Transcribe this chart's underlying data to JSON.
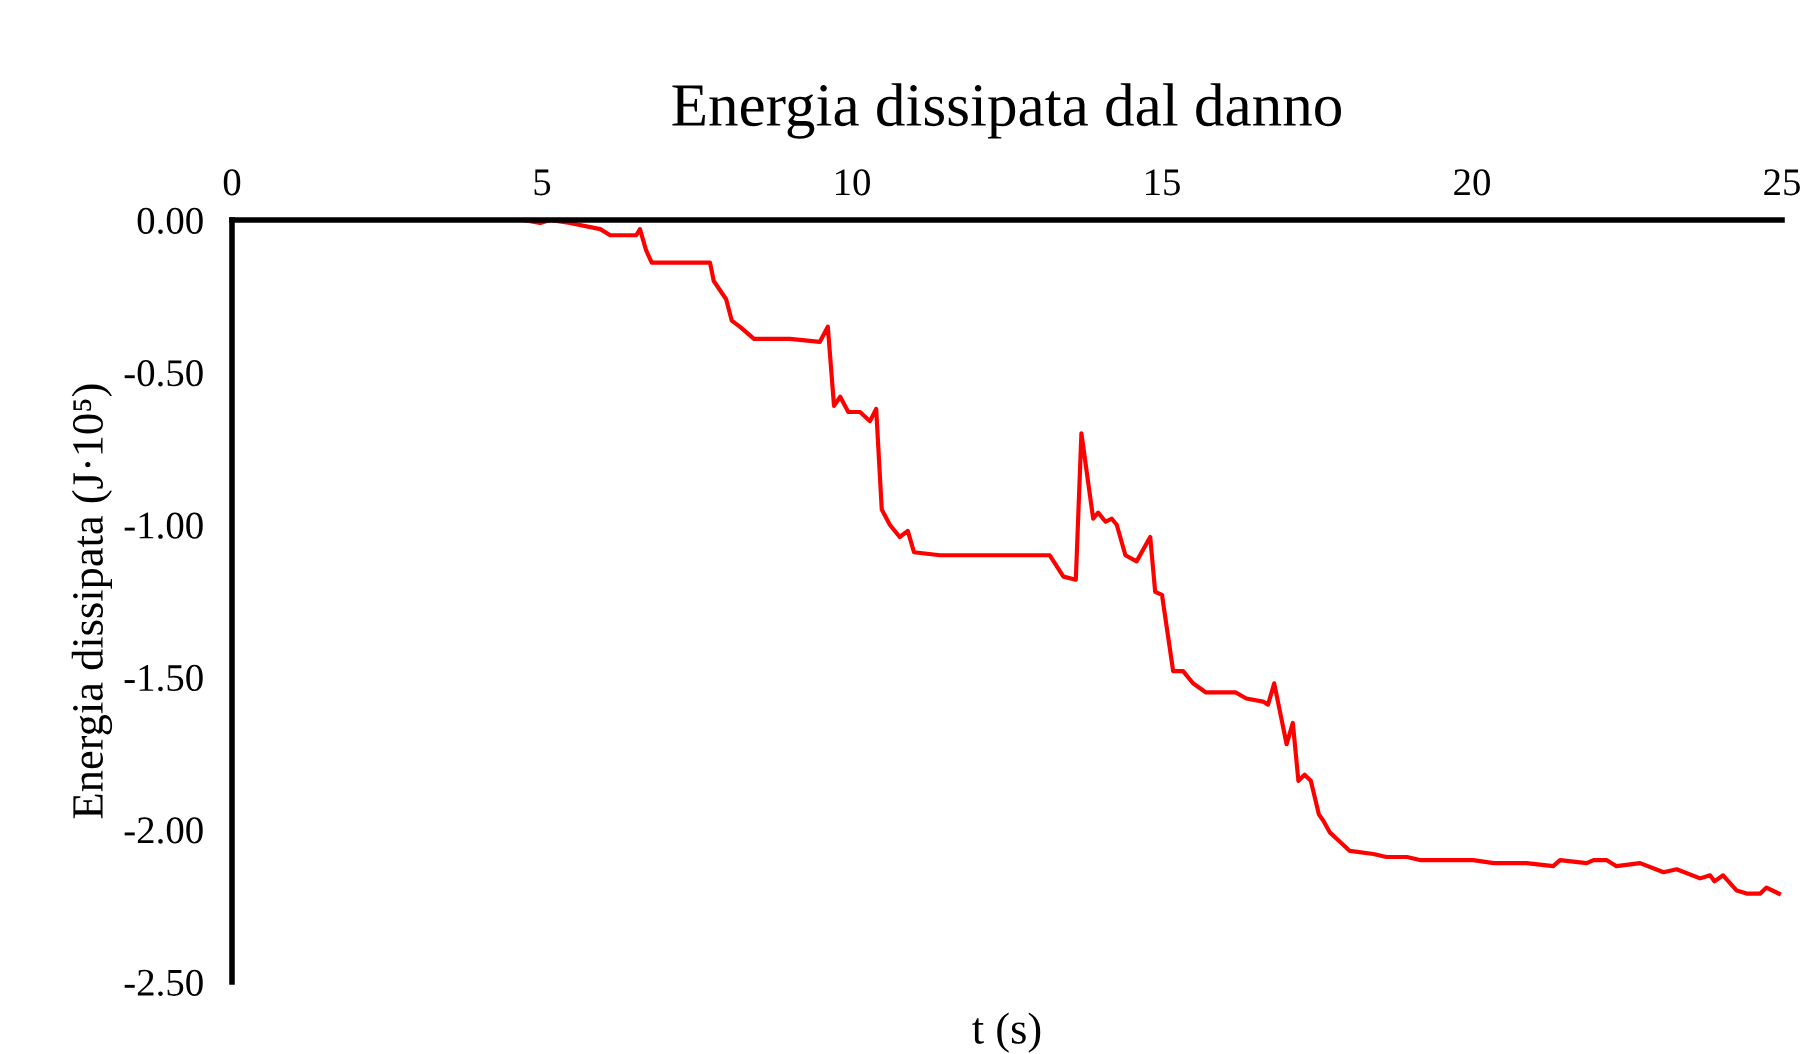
{
  "chart_data": {
    "type": "line",
    "title": "Energia dissipata dal danno",
    "xlabel": "t (s)",
    "ylabel": "Energia dissipata (J·10⁵)",
    "xlim": [
      0,
      25
    ],
    "xticks": [
      0,
      5,
      10,
      15,
      20,
      25
    ],
    "ylim": [
      -2.5,
      0
    ],
    "yticks": [
      {
        "value": 0,
        "label": "0.00"
      },
      {
        "value": -0.5,
        "label": "-0.50"
      },
      {
        "value": -1,
        "label": "-1.00"
      },
      {
        "value": -1.5,
        "label": "-1.50"
      },
      {
        "value": -2,
        "label": "-2.00"
      },
      {
        "value": -2.5,
        "label": "-2.50"
      }
    ],
    "grid": false,
    "marker": "none",
    "line_style": "solid",
    "series": [
      {
        "color": "#ff0000",
        "x": [
          4.71,
          4.97,
          5.13,
          5.45,
          5.94,
          6.1,
          6.52,
          6.58,
          6.68,
          6.77,
          7.71,
          7.77,
          7.97,
          8.06,
          8.19,
          8.42,
          8.68,
          9.0,
          9.48,
          9.61,
          9.71,
          9.81,
          9.94,
          10.13,
          10.29,
          10.39,
          10.48,
          10.61,
          10.77,
          10.9,
          11.0,
          11.42,
          12.06,
          12.71,
          13.19,
          13.41,
          13.61,
          13.7,
          13.89,
          13.97,
          14.09,
          14.19,
          14.27,
          14.41,
          14.59,
          14.81,
          14.89,
          15.0,
          15.18,
          15.34,
          15.5,
          15.71,
          16.19,
          16.36,
          16.63,
          16.71,
          16.81,
          17.01,
          17.11,
          17.2,
          17.3,
          17.4,
          17.53,
          17.6,
          17.71,
          17.87,
          18.03,
          18.41,
          18.62,
          18.95,
          19.16,
          19.48,
          20.02,
          20.35,
          20.88,
          21.31,
          21.42,
          21.85,
          21.96,
          22.17,
          22.33,
          22.71,
          23.09,
          23.3,
          23.68,
          23.84,
          23.91,
          24.05,
          24.27,
          24.43,
          24.65,
          24.75,
          24.95
        ],
        "values": [
          0,
          -0.01,
          0,
          -0.01,
          -0.03,
          -0.05,
          -0.05,
          -0.03,
          -0.1,
          -0.14,
          -0.14,
          -0.2,
          -0.26,
          -0.33,
          -0.35,
          -0.39,
          -0.39,
          -0.39,
          -0.4,
          -0.35,
          -0.61,
          -0.58,
          -0.63,
          -0.63,
          -0.66,
          -0.62,
          -0.95,
          -1.0,
          -1.04,
          -1.02,
          -1.09,
          -1.1,
          -1.1,
          -1.1,
          -1.1,
          -1.17,
          -1.18,
          -0.7,
          -0.98,
          -0.96,
          -0.99,
          -0.98,
          -1.0,
          -1.1,
          -1.12,
          -1.04,
          -1.22,
          -1.23,
          -1.48,
          -1.48,
          -1.52,
          -1.55,
          -1.55,
          -1.57,
          -1.58,
          -1.59,
          -1.52,
          -1.72,
          -1.65,
          -1.84,
          -1.82,
          -1.84,
          -1.95,
          -1.97,
          -2.01,
          -2.04,
          -2.07,
          -2.08,
          -2.09,
          -2.09,
          -2.1,
          -2.1,
          -2.1,
          -2.11,
          -2.11,
          -2.12,
          -2.1,
          -2.11,
          -2.1,
          -2.1,
          -2.12,
          -2.11,
          -2.14,
          -2.13,
          -2.16,
          -2.15,
          -2.17,
          -2.15,
          -2.2,
          -2.21,
          -2.21,
          -2.19,
          -2.21
        ]
      }
    ]
  }
}
